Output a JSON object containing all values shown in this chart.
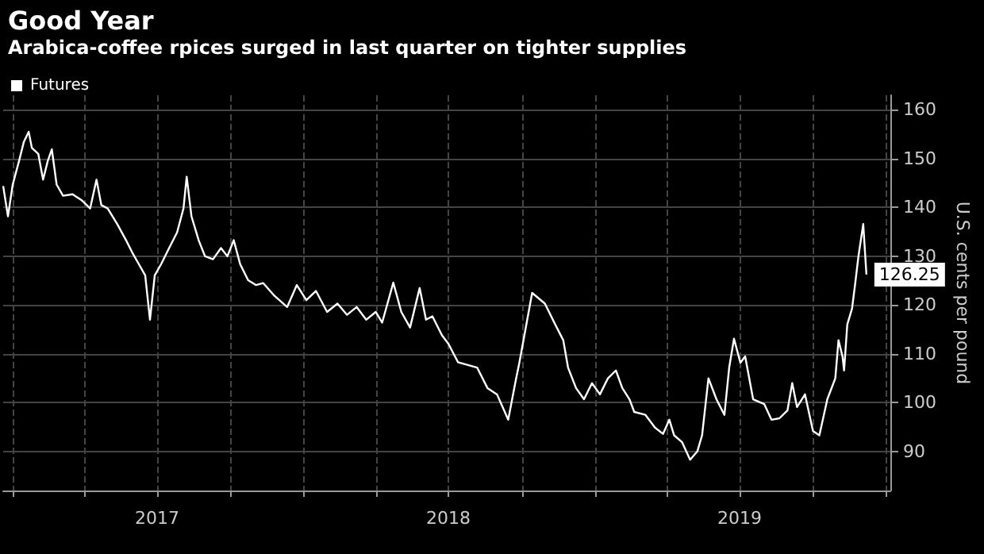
{
  "chart_data": {
    "type": "line",
    "title": "Good Year",
    "subtitle": "Arabica-coffee rpices surged in last quarter on tighter supplies",
    "ylabel": "U.S. cents per pound",
    "xlim": [
      "2016-12-20",
      "2020-01-06"
    ],
    "xticks": [
      {
        "value": "2017-01-01",
        "label": null
      },
      {
        "value": "2017-04-01",
        "label": null
      },
      {
        "value": "2017-07-01",
        "label": "2017"
      },
      {
        "value": "2017-10-01",
        "label": null
      },
      {
        "value": "2018-01-01",
        "label": null
      },
      {
        "value": "2018-04-01",
        "label": null
      },
      {
        "value": "2018-07-01",
        "label": "2018"
      },
      {
        "value": "2018-10-01",
        "label": null
      },
      {
        "value": "2019-01-01",
        "label": null
      },
      {
        "value": "2019-04-01",
        "label": null
      },
      {
        "value": "2019-07-01",
        "label": "2019"
      },
      {
        "value": "2019-10-01",
        "label": null
      },
      {
        "value": "2020-01-01",
        "label": null
      }
    ],
    "ylim": [
      82,
      163
    ],
    "yticks": [
      90,
      100,
      110,
      120,
      130,
      140,
      150,
      160
    ],
    "grid": true,
    "legend": "top left",
    "marker": "none",
    "line_style": "solid",
    "series": [
      {
        "name": "Futures",
        "color": "#ffffff",
        "x": [
          "2016-12-20",
          "2016-12-26",
          "2017-01-01",
          "2017-01-09",
          "2017-01-15",
          "2017-01-21",
          "2017-01-25",
          "2017-02-02",
          "2017-02-08",
          "2017-02-14",
          "2017-02-19",
          "2017-02-25",
          "2017-03-05",
          "2017-03-17",
          "2017-03-29",
          "2017-04-08",
          "2017-04-16",
          "2017-04-22",
          "2017-04-30",
          "2017-05-12",
          "2017-05-23",
          "2017-05-31",
          "2017-06-08",
          "2017-06-16",
          "2017-06-22",
          "2017-06-28",
          "2017-07-06",
          "2017-07-16",
          "2017-07-26",
          "2017-08-03",
          "2017-08-07",
          "2017-08-13",
          "2017-08-22",
          "2017-08-30",
          "2017-09-09",
          "2017-09-19",
          "2017-09-27",
          "2017-10-05",
          "2017-10-13",
          "2017-10-23",
          "2017-11-02",
          "2017-11-11",
          "2017-11-25",
          "2017-12-11",
          "2017-12-23",
          "2018-01-04",
          "2018-01-16",
          "2018-01-30",
          "2018-02-12",
          "2018-02-24",
          "2018-03-08",
          "2018-03-20",
          "2018-04-01",
          "2018-04-09",
          "2018-04-23",
          "2018-05-03",
          "2018-05-14",
          "2018-05-26",
          "2018-06-03",
          "2018-06-11",
          "2018-06-23",
          "2018-07-01",
          "2018-07-13",
          "2018-08-06",
          "2018-08-19",
          "2018-08-31",
          "2018-09-14",
          "2018-09-24",
          "2018-09-28",
          "2018-10-14",
          "2018-10-30",
          "2018-11-12",
          "2018-11-22",
          "2018-11-28",
          "2018-12-08",
          "2018-12-18",
          "2018-12-28",
          "2019-01-07",
          "2019-01-17",
          "2019-01-27",
          "2019-02-04",
          "2019-02-13",
          "2019-02-19",
          "2019-03-05",
          "2019-03-17",
          "2019-03-27",
          "2019-04-04",
          "2019-04-10",
          "2019-04-20",
          "2019-04-30",
          "2019-05-09",
          "2019-05-15",
          "2019-05-23",
          "2019-06-02",
          "2019-06-12",
          "2019-06-18",
          "2019-06-24",
          "2019-07-02",
          "2019-07-08",
          "2019-07-18",
          "2019-08-01",
          "2019-08-10",
          "2019-08-20",
          "2019-08-30",
          "2019-09-05",
          "2019-09-11",
          "2019-09-21",
          "2019-10-01",
          "2019-10-09",
          "2019-10-19",
          "2019-10-29",
          "2019-11-02",
          "2019-11-07",
          "2019-11-09",
          "2019-11-13",
          "2019-11-19",
          "2019-11-23",
          "2019-11-27",
          "2019-12-03",
          "2019-12-07"
        ],
        "values": [
          144.4,
          138.2,
          144.7,
          149.6,
          153.5,
          155.5,
          152.2,
          151,
          145.7,
          149.6,
          151.9,
          144.7,
          142.4,
          142.7,
          141.4,
          139.8,
          145.7,
          140.5,
          139.8,
          136.6,
          133.3,
          130.7,
          128.4,
          126.1,
          117,
          126.1,
          128.4,
          131.7,
          134.9,
          139.8,
          146.3,
          138.2,
          133.3,
          130,
          129.4,
          131.7,
          130,
          133.3,
          128.4,
          125.1,
          124.1,
          124.5,
          121.9,
          119.6,
          124.1,
          121,
          122.9,
          118.6,
          120.3,
          118,
          119.6,
          117,
          118.6,
          116.4,
          124.6,
          118.6,
          115.4,
          123.5,
          117,
          117.7,
          113.8,
          112.1,
          108.3,
          107.2,
          103,
          101.7,
          96.5,
          105,
          108.2,
          122.5,
          120.3,
          116,
          112.8,
          107.2,
          103,
          100.7,
          104,
          101.7,
          105,
          106.6,
          103,
          100.7,
          98.1,
          97.5,
          94.9,
          93.6,
          96.5,
          93.3,
          91.9,
          88.3,
          90,
          93.3,
          105,
          100.7,
          97.5,
          107.2,
          113.1,
          108.2,
          109.5,
          100.7,
          99.7,
          96.5,
          96.8,
          98.4,
          104,
          99.1,
          101.7,
          94.2,
          93.3,
          100.7,
          105,
          112.8,
          109.5,
          106.6,
          116,
          119.3,
          124.5,
          130,
          136.6,
          126.25
        ],
        "value_labels": [
          null,
          null,
          null,
          null,
          null,
          null,
          null,
          null,
          null,
          null,
          null,
          null,
          null,
          null,
          null,
          null,
          null,
          null,
          null,
          null,
          null,
          null,
          null,
          null,
          null,
          null,
          null,
          null,
          null,
          null,
          null,
          null,
          null,
          null,
          null,
          null,
          null,
          null,
          null,
          null,
          null,
          null,
          null,
          null,
          null,
          null,
          null,
          null,
          null,
          null,
          null,
          null,
          null,
          null,
          null,
          null,
          null,
          null,
          null,
          null,
          null,
          null,
          null,
          null,
          null,
          null,
          null,
          null,
          null,
          null,
          null,
          null,
          null,
          null,
          null,
          null,
          null,
          null,
          null,
          null,
          null,
          null,
          null,
          null,
          null,
          null,
          null,
          null,
          null,
          null,
          null,
          null,
          null,
          null,
          null,
          null,
          null,
          null,
          null,
          null,
          null,
          null,
          null,
          null,
          null,
          null,
          null,
          null,
          null,
          null,
          null,
          null,
          null,
          null,
          null,
          null,
          null,
          null,
          null,
          "126.25"
        ]
      }
    ]
  }
}
